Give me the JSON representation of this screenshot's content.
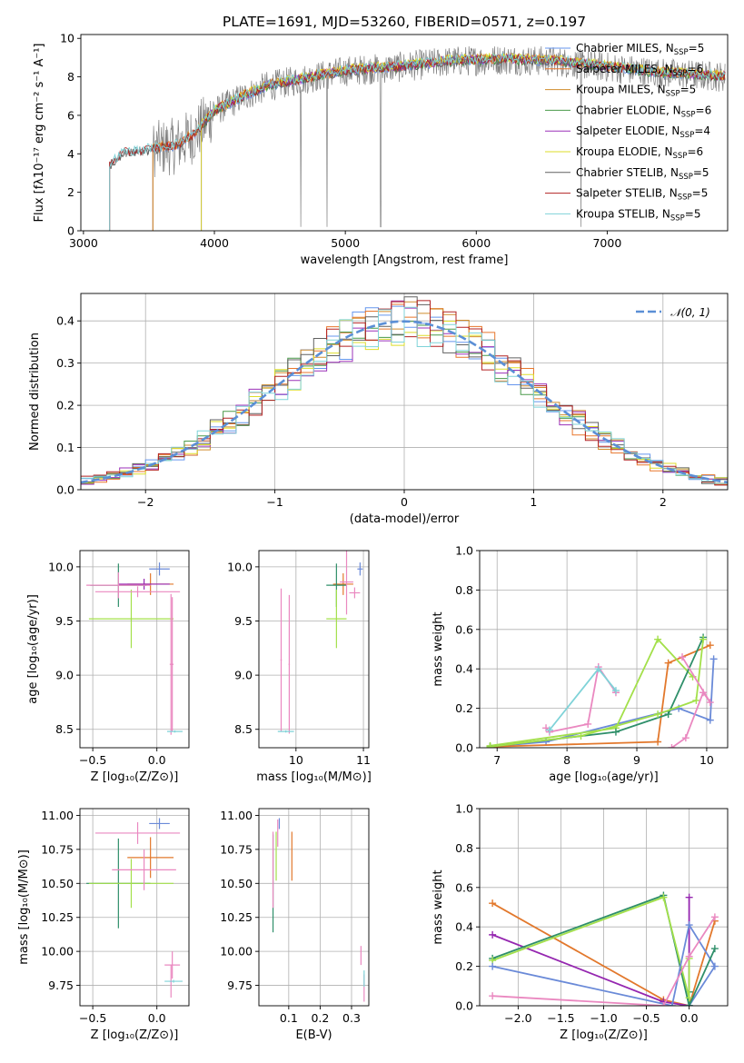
{
  "figure_title": "PLATE=1691, MJD=53260, FIBERID=0571, z=0.197",
  "palette": {
    "models": [
      "#6495ed",
      "#e8762b",
      "#d08c2c",
      "#4a9a4a",
      "#9b30b8",
      "#dede2a",
      "#606060",
      "#b22222",
      "#7fd3d8"
    ],
    "overlay_models": [
      "#6a8ad8",
      "#e2782c",
      "#9527b0",
      "#2f8f6a",
      "#a3e04a",
      "#ea88c0"
    ],
    "data": "#808080",
    "gaussian": "#5b8fd6"
  },
  "chart_data": [
    {
      "id": "spectrum",
      "type": "line",
      "title": "PLATE=1691, MJD=53260, FIBERID=0571, z=0.197",
      "xlabel": "wavelength [Angstrom, rest frame]",
      "ylabel": "Flux [fλ10⁻¹⁷ erg cm⁻² s⁻¹ A⁻¹]",
      "xlim": [
        2980,
        7920
      ],
      "ylim": [
        0,
        10.2
      ],
      "xticks": [
        3000,
        4000,
        5000,
        6000,
        7000
      ],
      "yticks": [
        0,
        2,
        4,
        6,
        8,
        10
      ],
      "grid": false,
      "legend_position": "upper right",
      "continuum_knots": [
        [
          3200,
          3.4
        ],
        [
          3300,
          4.0
        ],
        [
          3500,
          4.2
        ],
        [
          3700,
          4.4
        ],
        [
          3850,
          5.0
        ],
        [
          4000,
          6.2
        ],
        [
          4200,
          6.9
        ],
        [
          4400,
          7.5
        ],
        [
          4700,
          7.9
        ],
        [
          5000,
          8.3
        ],
        [
          5400,
          8.5
        ],
        [
          5800,
          8.8
        ],
        [
          6200,
          8.9
        ],
        [
          6600,
          8.8
        ],
        [
          7000,
          8.5
        ],
        [
          7400,
          8.2
        ],
        [
          7900,
          8.0
        ]
      ],
      "series": [
        {
          "name": "Chabrier MILES, N_SSP=5",
          "start": 3530
        },
        {
          "name": "Salpeter MILES, N_SSP=6",
          "start": 3530
        },
        {
          "name": "Kroupa MILES, N_SSP=5",
          "start": 3530
        },
        {
          "name": "Chabrier ELODIE, N_SSP=6",
          "start": 3900
        },
        {
          "name": "Salpeter ELODIE, N_SSP=4",
          "start": 3900
        },
        {
          "name": "Kroupa ELODIE, N_SSP=6",
          "start": 3900
        },
        {
          "name": "Chabrier STELIB, N_SSP=5",
          "start": 3200
        },
        {
          "name": "Salpeter STELIB, N_SSP=5",
          "start": 3200
        },
        {
          "name": "Kroupa STELIB, N_SSP=5",
          "start": 3200
        }
      ]
    },
    {
      "id": "residuals",
      "type": "step",
      "xlabel": "(data-model)/error",
      "ylabel": "Normed distribution",
      "xlim": [
        -2.5,
        2.5
      ],
      "ylim": [
        0,
        0.465
      ],
      "xticks": [
        -2,
        -1,
        0,
        1,
        2
      ],
      "yticks": [
        0.0,
        0.1,
        0.2,
        0.3,
        0.4
      ],
      "grid": true,
      "bin_width": 0.1,
      "legend_position": "upper right",
      "reference": {
        "name": "𝒩(0, 1)",
        "mu": 0,
        "sigma": 1
      }
    },
    {
      "id": "age_vs_Z",
      "type": "errorbar",
      "xlabel": "Z [log₁₀(Z/Z⊙)]",
      "ylabel": "age  [log₁₀(age/yr)]",
      "xlim": [
        -0.6,
        0.25
      ],
      "ylim": [
        8.33,
        10.15
      ],
      "xticks": [
        -0.5,
        0.0
      ],
      "yticks": [
        8.5,
        9.0,
        9.5,
        10.0
      ],
      "grid": true,
      "points": [
        {
          "x": 0.02,
          "y": 9.98,
          "xerr": 0.08,
          "yerr": 0.06,
          "c": 0
        },
        {
          "x": -0.05,
          "y": 9.84,
          "xerr": 0.18,
          "yerr": 0.1,
          "c": 1
        },
        {
          "x": -0.1,
          "y": 9.84,
          "xerr": 0.2,
          "yerr": 0.05,
          "c": 2
        },
        {
          "x": -0.3,
          "y": 9.83,
          "xerr": 0.22,
          "yerr": 0.2,
          "c": 3
        },
        {
          "x": -0.2,
          "y": 9.52,
          "xerr": 0.33,
          "yerr": 0.27,
          "c": 4
        },
        {
          "x": -0.3,
          "y": 9.83,
          "xerr": 0.25,
          "yerr": 0.12,
          "c": 5
        },
        {
          "x": 0.11,
          "y": 9.1,
          "xerr": 0.01,
          "yerr": 0.65,
          "c": 6
        },
        {
          "x": 0.12,
          "y": 9.1,
          "xerr": 0.01,
          "yerr": 0.62,
          "c": 7
        },
        {
          "x": 0.14,
          "y": 8.48,
          "xerr": 0.06,
          "yerr": 0.01,
          "c": 8
        },
        {
          "x": -0.15,
          "y": 9.77,
          "xerr": 0.33,
          "yerr": 0.05,
          "c": 9
        }
      ]
    },
    {
      "id": "age_vs_mass",
      "type": "errorbar",
      "xlabel": "mass [log₁₀(M/M⊙)]",
      "ylabel": "",
      "xlim": [
        9.45,
        11.08
      ],
      "ylim": [
        8.33,
        10.15
      ],
      "xticks": [
        10,
        11
      ],
      "yticks": [
        8.5,
        9.0,
        9.5,
        10.0
      ],
      "grid": true,
      "points": [
        {
          "x": 10.95,
          "y": 9.98,
          "xerr": 0.04,
          "yerr": 0.06,
          "c": 0
        },
        {
          "x": 10.7,
          "y": 9.84,
          "xerr": 0.15,
          "yerr": 0.1,
          "c": 1
        },
        {
          "x": 10.6,
          "y": 9.83,
          "xerr": 0.15,
          "yerr": 0.2,
          "c": 3
        },
        {
          "x": 10.6,
          "y": 9.52,
          "xerr": 0.15,
          "yerr": 0.27,
          "c": 4
        },
        {
          "x": 10.75,
          "y": 9.86,
          "xerr": 0.1,
          "yerr": 0.3,
          "c": 5
        },
        {
          "x": 9.78,
          "y": 9.14,
          "xerr": 0.01,
          "yerr": 0.66,
          "c": 6
        },
        {
          "x": 9.9,
          "y": 9.1,
          "xerr": 0.01,
          "yerr": 0.64,
          "c": 7
        },
        {
          "x": 9.85,
          "y": 8.48,
          "xerr": 0.12,
          "yerr": 0.01,
          "c": 8
        },
        {
          "x": 10.87,
          "y": 9.76,
          "xerr": 0.08,
          "yerr": 0.05,
          "c": 9
        }
      ]
    },
    {
      "id": "mass_weight_vs_age",
      "type": "line",
      "xlabel": "age  [log₁₀(age/yr)]",
      "ylabel": "mass weight",
      "xlim": [
        6.75,
        10.3
      ],
      "ylim": [
        0,
        1.0
      ],
      "xticks": [
        7,
        8,
        9,
        10
      ],
      "yticks": [
        0.0,
        0.2,
        0.4,
        0.6,
        0.8,
        1.0
      ],
      "grid": true,
      "series": [
        {
          "c": 0,
          "x": [
            6.9,
            7.7,
            9.6,
            10.05,
            10.1
          ],
          "y": [
            0.005,
            0.03,
            0.2,
            0.14,
            0.45
          ]
        },
        {
          "c": 1,
          "x": [
            6.9,
            9.3,
            9.45,
            10.05
          ],
          "y": [
            0.005,
            0.03,
            0.43,
            0.52
          ]
        },
        {
          "c": 4,
          "x": [
            6.9,
            8.7,
            9.3,
            9.8
          ],
          "y": [
            0.01,
            0.1,
            0.55,
            0.36
          ]
        },
        {
          "c": 3,
          "x": [
            6.9,
            8.7,
            9.45,
            9.95
          ],
          "y": [
            0.005,
            0.08,
            0.17,
            0.56
          ]
        },
        {
          "c": 10,
          "x": [
            6.9,
            8.2,
            9.3,
            9.85,
            9.95
          ],
          "y": [
            0.005,
            0.06,
            0.17,
            0.24,
            0.55
          ]
        },
        {
          "c": 9,
          "x": [
            7.7,
            7.75,
            8.3,
            8.45,
            8.7
          ],
          "y": [
            0.1,
            0.08,
            0.12,
            0.41,
            0.28
          ]
        },
        {
          "c": 8,
          "x": [
            7.75,
            8.45,
            8.7
          ],
          "y": [
            0.09,
            0.4,
            0.29
          ]
        },
        {
          "c": 11,
          "x": [
            9.5,
            9.7,
            9.95,
            10.05,
            9.65
          ],
          "y": [
            0.0,
            0.05,
            0.28,
            0.23,
            0.46
          ]
        }
      ]
    },
    {
      "id": "mass_vs_Z",
      "type": "errorbar",
      "xlabel": "Z [log₁₀(Z/Z⊙)]",
      "ylabel": "mass [log₁₀(M/M⊙)]",
      "xlim": [
        -0.6,
        0.25
      ],
      "ylim": [
        9.6,
        11.05
      ],
      "xticks": [
        -0.5,
        0.0
      ],
      "yticks": [
        9.75,
        10.0,
        10.25,
        10.5,
        10.75,
        11.0
      ],
      "grid": true,
      "points": [
        {
          "x": 0.02,
          "y": 10.94,
          "xerr": 0.08,
          "yerr": 0.04,
          "c": 0
        },
        {
          "x": -0.05,
          "y": 10.69,
          "xerr": 0.18,
          "yerr": 0.15,
          "c": 1
        },
        {
          "x": -0.3,
          "y": 10.5,
          "xerr": 0.25,
          "yerr": 0.33,
          "c": 3
        },
        {
          "x": -0.2,
          "y": 10.5,
          "xerr": 0.33,
          "yerr": 0.18,
          "c": 4
        },
        {
          "x": -0.1,
          "y": 10.6,
          "xerr": 0.25,
          "yerr": 0.15,
          "c": 5
        },
        {
          "x": 0.11,
          "y": 9.78,
          "xerr": 0.01,
          "yerr": 0.12,
          "c": 6
        },
        {
          "x": 0.12,
          "y": 9.9,
          "xerr": 0.06,
          "yerr": 0.1,
          "c": 7
        },
        {
          "x": 0.13,
          "y": 9.78,
          "xerr": 0.07,
          "yerr": 0.01,
          "c": 8
        },
        {
          "x": -0.15,
          "y": 10.87,
          "xerr": 0.33,
          "yerr": 0.08,
          "c": 9
        }
      ]
    },
    {
      "id": "mass_vs_EBV",
      "type": "errorbar",
      "xlabel": "E(B-V)",
      "ylabel": "",
      "xlim": [
        0.005,
        0.355
      ],
      "ylim": [
        9.6,
        11.05
      ],
      "xticks": [
        0.1,
        0.2,
        0.3
      ],
      "yticks": [
        9.75,
        10.0,
        10.25,
        10.5,
        10.75,
        11.0
      ],
      "grid": true,
      "points": [
        {
          "x": 0.07,
          "y": 10.94,
          "xerr": 0.0,
          "yerr": 0.04,
          "c": 0
        },
        {
          "x": 0.11,
          "y": 10.7,
          "xerr": 0.0,
          "yerr": 0.18,
          "c": 1
        },
        {
          "x": 0.05,
          "y": 10.5,
          "xerr": 0.0,
          "yerr": 0.36,
          "c": 3
        },
        {
          "x": 0.06,
          "y": 10.7,
          "xerr": 0.0,
          "yerr": 0.18,
          "c": 4
        },
        {
          "x": 0.05,
          "y": 10.6,
          "xerr": 0.0,
          "yerr": 0.28,
          "c": 5
        },
        {
          "x": 0.34,
          "y": 9.73,
          "xerr": 0.0,
          "yerr": 0.1,
          "c": 6
        },
        {
          "x": 0.33,
          "y": 9.97,
          "xerr": 0.0,
          "yerr": 0.07,
          "c": 7
        },
        {
          "x": 0.34,
          "y": 9.8,
          "xerr": 0.0,
          "yerr": 0.06,
          "c": 8
        },
        {
          "x": 0.065,
          "y": 10.87,
          "xerr": 0.0,
          "yerr": 0.1,
          "c": 9
        }
      ]
    },
    {
      "id": "mass_weight_vs_Z",
      "type": "line",
      "xlabel": "Z [log₁₀(Z/Z⊙)]",
      "ylabel": "mass weight",
      "xlim": [
        -2.45,
        0.45
      ],
      "ylim": [
        0,
        1.0
      ],
      "xticks": [
        -2.0,
        -1.5,
        -1.0,
        -0.5,
        0.0
      ],
      "yticks": [
        0.0,
        0.2,
        0.4,
        0.6,
        0.8,
        1.0
      ],
      "grid": true,
      "series": [
        {
          "c": 1,
          "x": [
            -2.3,
            -0.3,
            0.0,
            0.3
          ],
          "y": [
            0.52,
            0.03,
            0.0,
            0.43
          ]
        },
        {
          "c": 2,
          "x": [
            -2.3,
            -0.3,
            0.0,
            0.0
          ],
          "y": [
            0.36,
            0.02,
            0.0,
            0.55
          ]
        },
        {
          "c": 3,
          "x": [
            -2.3,
            -0.3,
            0.0,
            0.0
          ],
          "y": [
            0.24,
            0.56,
            0.0,
            0.07
          ]
        },
        {
          "c": 4,
          "x": [
            -2.3,
            -0.3,
            0.0,
            0.0
          ],
          "y": [
            0.23,
            0.55,
            0.04,
            0.24
          ]
        },
        {
          "c": 0,
          "x": [
            -2.3,
            -0.2,
            0.0,
            0.3,
            0.0
          ],
          "y": [
            0.2,
            0.0,
            0.41,
            0.2,
            0.0
          ]
        },
        {
          "c": 5,
          "x": [
            -2.3,
            -0.3,
            0.0,
            0.3
          ],
          "y": [
            0.05,
            0.0,
            0.25,
            0.45
          ]
        },
        {
          "c": 3,
          "x": [
            0.0,
            0.3
          ],
          "y": [
            0.0,
            0.29
          ]
        }
      ]
    }
  ]
}
